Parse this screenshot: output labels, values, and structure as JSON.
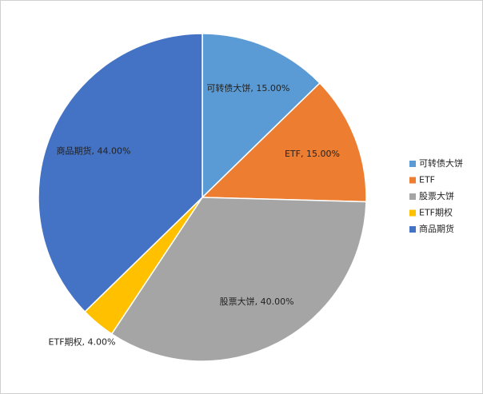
{
  "chart_data": {
    "type": "pie",
    "categories": [
      "可转债大饼",
      "ETF",
      "股票大饼",
      "ETF期权",
      "商品期货"
    ],
    "values": [
      15,
      15,
      40,
      4,
      44
    ],
    "value_labels": [
      "15.00%",
      "15.00%",
      "40.00%",
      "4.00%",
      "44.00%"
    ],
    "label_separator": ", ",
    "colors": [
      "#5b9bd5",
      "#ed7d31",
      "#a5a5a5",
      "#ffc000",
      "#4472c4"
    ],
    "legend": "right"
  }
}
